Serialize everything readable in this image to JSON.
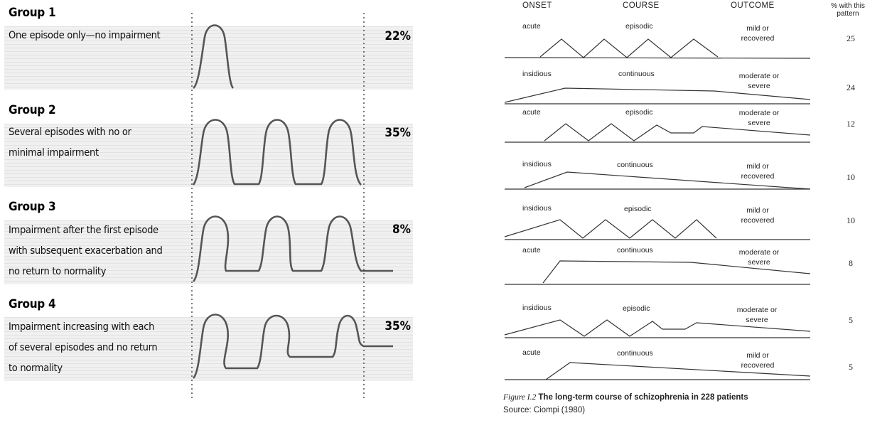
{
  "left": {
    "groups": [
      {
        "title": "Group 1",
        "lines": [
          "One episode only—no impairment"
        ],
        "percent": "22%"
      },
      {
        "title": "Group 2",
        "lines": [
          "Several episodes with no or",
          "minimal impairment"
        ],
        "percent": "35%"
      },
      {
        "title": "Group 3",
        "lines": [
          "Impairment after the first episode",
          "with subsequent exacerbation and",
          "no return to normality"
        ],
        "percent": "8%"
      },
      {
        "title": "Group 4",
        "lines": [
          "Impairment increasing with each",
          "of several episodes and no return",
          "to normality"
        ],
        "percent": "35%"
      }
    ]
  },
  "right": {
    "headers": {
      "onset": "ONSET",
      "course": "COURSE",
      "outcome": "OUTCOME",
      "percent_line1": "% with this",
      "percent_line2": "pattern"
    },
    "rows": [
      {
        "onset": "acute",
        "course": "episodic",
        "outcome": [
          "mild or",
          "recovered"
        ],
        "percent": "25"
      },
      {
        "onset": "insidious",
        "course": "continuous",
        "outcome": [
          "moderate or",
          "severe"
        ],
        "percent": "24"
      },
      {
        "onset": "acute",
        "course": "episodic",
        "outcome": [
          "moderate or",
          "severe"
        ],
        "percent": "12"
      },
      {
        "onset": "insidious",
        "course": "continuous",
        "outcome": [
          "mild or",
          "recovered"
        ],
        "percent": "10"
      },
      {
        "onset": "insidious",
        "course": "episodic",
        "outcome": [
          "mild or",
          "recovered"
        ],
        "percent": "10"
      },
      {
        "onset": "acute",
        "course": "continuous",
        "outcome": [
          "moderate or",
          "severe"
        ],
        "percent": "8"
      },
      {
        "onset": "insidious",
        "course": "episodic",
        "outcome": [
          "moderate or",
          "severe"
        ],
        "percent": "5"
      },
      {
        "onset": "acute",
        "course": "continuous",
        "outcome": [
          "mild or",
          "recovered"
        ],
        "percent": "5"
      }
    ],
    "caption": {
      "figure_label": "Figure I.2",
      "title": "The long-term course of schizophrenia in 228 patients",
      "source": "Source: Ciompi (1980)"
    }
  }
}
